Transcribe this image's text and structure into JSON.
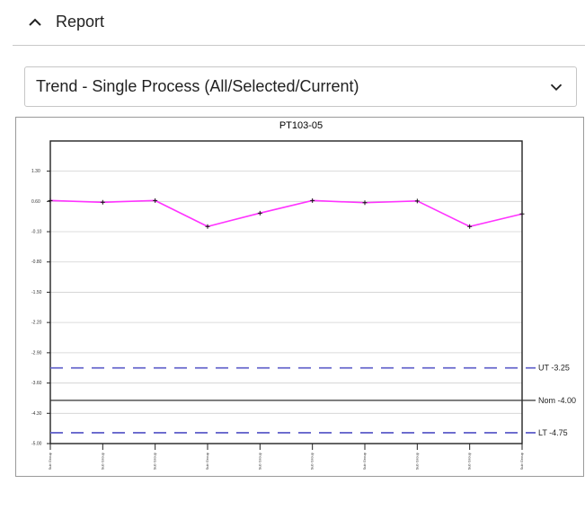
{
  "report": {
    "title": "Report"
  },
  "selector": {
    "value": "Trend - Single Process (All/Selected/Current)"
  },
  "chart_data": {
    "type": "line",
    "title": "PT103-05",
    "ylim": [
      -5.0,
      2.0
    ],
    "y_ticks": [
      {
        "value": 1.3,
        "label": "1.30"
      },
      {
        "value": 0.6,
        "label": "0.60"
      },
      {
        "value": -0.1,
        "label": "-0.10"
      },
      {
        "value": -0.8,
        "label": "-0.80"
      },
      {
        "value": -1.5,
        "label": "-1.50"
      },
      {
        "value": -2.2,
        "label": "-2.20"
      },
      {
        "value": -2.9,
        "label": "-2.90"
      },
      {
        "value": -3.6,
        "label": "-3.60"
      },
      {
        "value": -4.3,
        "label": "-4.30"
      },
      {
        "value": -5.0,
        "label": "-5.00"
      }
    ],
    "x_tick_labels": [
      "Sub Group",
      "Sub Group",
      "Sub Group",
      "Sub Group",
      "Sub Group",
      "Sub Group",
      "Sub Group",
      "Sub Group",
      "Sub Group",
      "Sub Group"
    ],
    "series": [
      {
        "values": [
          0.62,
          0.58,
          0.62,
          0.02,
          0.33,
          0.62,
          0.57,
          0.61,
          0.02,
          0.31
        ],
        "color": "#ff33ff"
      }
    ],
    "limits": [
      {
        "label": "UT -3.25",
        "value": -3.25,
        "style": "dashed",
        "color": "#6666cc"
      },
      {
        "label": "Nom -4.00",
        "value": -4.0,
        "style": "solid",
        "color": "#333333"
      },
      {
        "label": "LT -4.75",
        "value": -4.75,
        "style": "dashed",
        "color": "#6666cc"
      }
    ],
    "grid": true
  }
}
